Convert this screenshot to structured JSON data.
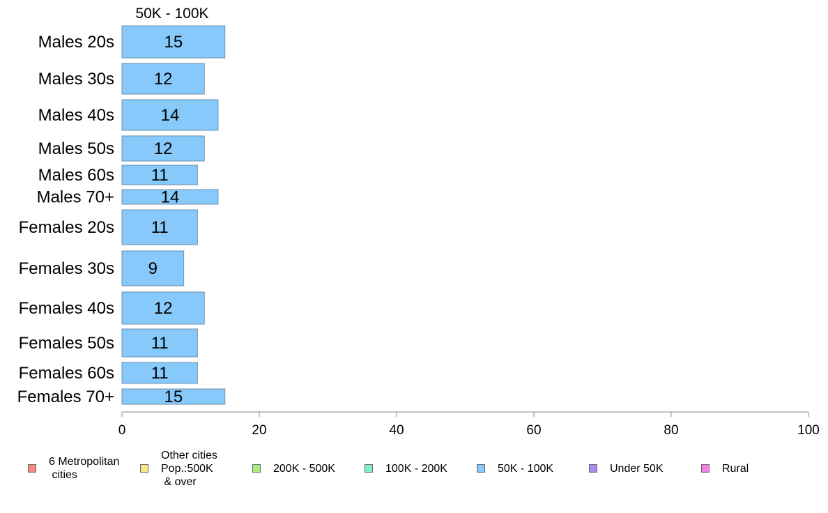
{
  "chart_data": {
    "type": "bar",
    "orientation": "horizontal",
    "title": "50K - 100K",
    "categories": [
      "Males 20s",
      "Males 30s",
      "Males 40s",
      "Males 50s",
      "Males 60s",
      "Males 70+",
      "Females 20s",
      "Females 30s",
      "Females 40s",
      "Females 50s",
      "Females 60s",
      "Females 70+"
    ],
    "series": [
      {
        "name": "50K - 100K",
        "values": [
          15,
          12,
          14,
          12,
          11,
          14,
          11,
          9,
          12,
          11,
          11,
          15
        ],
        "color": "#87C9FA"
      }
    ],
    "data_labels": [
      "15",
      "12",
      "14",
      "12",
      "11",
      "14",
      "11",
      "9",
      "12",
      "11",
      "11",
      "15"
    ],
    "bar_widths_relative": [
      15,
      12,
      14,
      12,
      11,
      14,
      11,
      9,
      12,
      11,
      11,
      15
    ],
    "xlim": [
      0,
      100
    ],
    "xticks": [
      "0",
      "20",
      "40",
      "60",
      "80",
      "100"
    ],
    "xlabel": "",
    "ylabel": "",
    "grid": false,
    "legend_position": "bottom",
    "legend": [
      {
        "label": "6 Metropolitan\n cities",
        "color": "#F28B82"
      },
      {
        "label": "Other cities\nPop.:500K\n & over",
        "color": "#F8E58C"
      },
      {
        "label": "200K - 500K",
        "color": "#A8F07E"
      },
      {
        "label": "100K - 200K",
        "color": "#7FF0C8"
      },
      {
        "label": "50K - 100K",
        "color": "#87C9FA"
      },
      {
        "label": "Under 50K",
        "color": "#A98BF0"
      },
      {
        "label": "Rural",
        "color": "#F47FE6"
      }
    ]
  }
}
